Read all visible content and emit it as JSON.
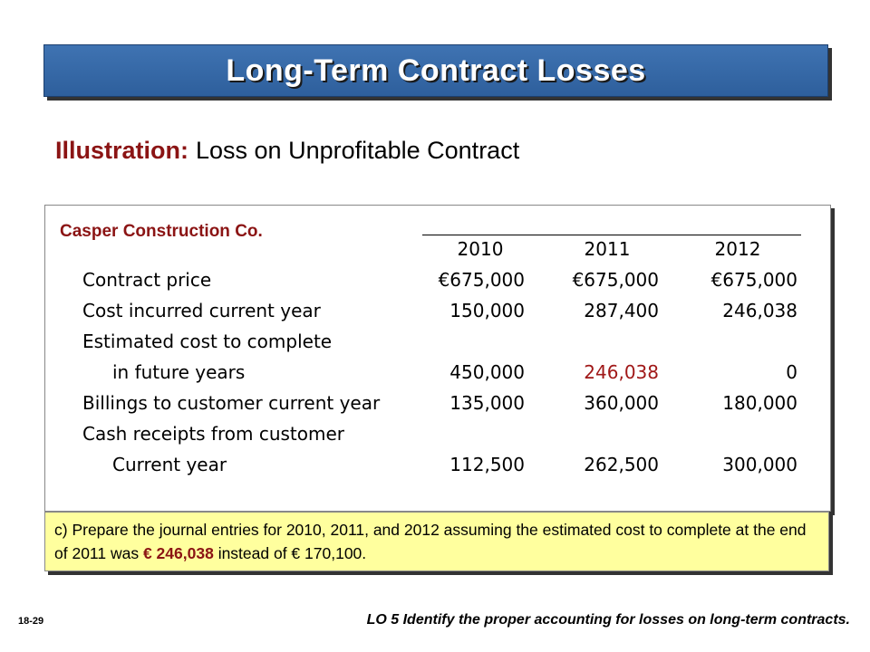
{
  "title": "Long-Term Contract Losses",
  "illustration": {
    "lead": "Illustration:",
    "text": "Loss on Unprofitable Contract"
  },
  "table": {
    "company": "Casper Construction Co.",
    "years": [
      "2010",
      "2011",
      "2012"
    ],
    "rows": [
      {
        "label": "Contract price",
        "values": [
          "€675,000",
          "€675,000",
          "€675,000"
        ]
      },
      {
        "label": "Cost incurred current year",
        "values": [
          "150,000",
          "287,400",
          "246,038"
        ]
      },
      {
        "label": "Estimated cost to complete",
        "values": [
          "",
          "",
          ""
        ]
      },
      {
        "label": "in future years",
        "values": [
          "450,000",
          "246,038",
          "0"
        ]
      },
      {
        "label": "Billings to customer current year",
        "values": [
          "135,000",
          "360,000",
          "180,000"
        ]
      },
      {
        "label": "Cash receipts from customer",
        "values": [
          "",
          "",
          ""
        ]
      },
      {
        "label": "Current year",
        "values": [
          "112,500",
          "262,500",
          "300,000"
        ]
      }
    ],
    "highlight_color": "#a01818"
  },
  "note": {
    "prefix": "c)  Prepare the journal entries for 2010, 2011, and 2012 assuming the estimated cost to complete at the end of 2011 was",
    "highlight": "€ 246,038",
    "suffix": "instead of € 170,100."
  },
  "slide_number": "18-29",
  "footer": "LO 5  Identify the proper accounting for losses on long-term contracts."
}
